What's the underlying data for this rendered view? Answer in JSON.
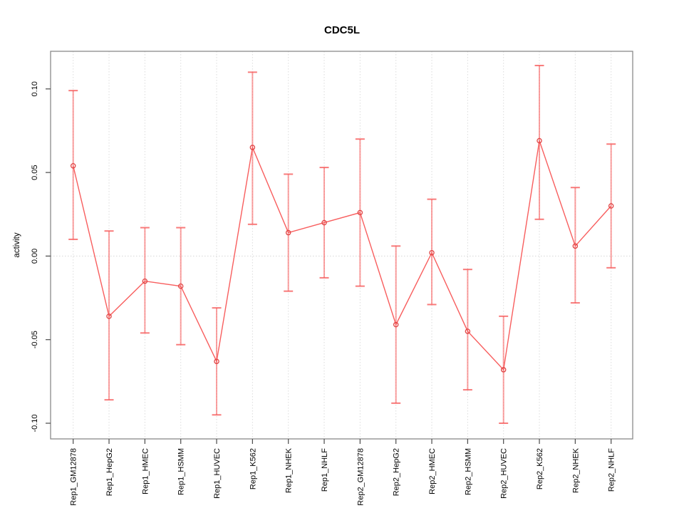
{
  "chart_data": {
    "type": "line",
    "title": "CDC5L",
    "ylabel": "activity",
    "xlabel": "",
    "categories": [
      "Rep1_GM12878",
      "Rep1_HepG2",
      "Rep1_HMEC",
      "Rep1_HSMM",
      "Rep1_HUVEC",
      "Rep1_K562",
      "Rep1_NHEK",
      "Rep1_NHLF",
      "Rep2_GM12878",
      "Rep2_HepG2",
      "Rep2_HMEC",
      "Rep2_HSMM",
      "Rep2_HUVEC",
      "Rep2_K562",
      "Rep2_NHEK",
      "Rep2_NHLF"
    ],
    "series": [
      {
        "name": "activity",
        "values": [
          0.054,
          -0.036,
          -0.015,
          -0.018,
          -0.063,
          0.065,
          0.014,
          0.02,
          0.026,
          -0.041,
          0.002,
          -0.045,
          -0.068,
          0.069,
          0.006,
          0.03
        ],
        "error_low": [
          0.01,
          -0.086,
          -0.046,
          -0.053,
          -0.095,
          0.019,
          -0.021,
          -0.013,
          -0.018,
          -0.088,
          -0.029,
          -0.08,
          -0.1,
          0.022,
          -0.028,
          -0.007
        ],
        "error_high": [
          0.099,
          0.015,
          0.017,
          0.017,
          -0.031,
          0.11,
          0.049,
          0.053,
          0.07,
          0.006,
          0.034,
          -0.008,
          -0.036,
          0.114,
          0.041,
          0.067
        ]
      }
    ],
    "y_ticks": [
      0.1,
      0.05,
      0.0,
      -0.05,
      -0.1
    ],
    "y_tick_labels": [
      "0.10",
      "0.05",
      "0.00",
      "-0.05",
      "-0.10"
    ],
    "ylim": [
      -0.109,
      0.123
    ],
    "grid": "vertical-dotted",
    "zero_line": true,
    "legend": "none",
    "point_style": "open-circle",
    "colors": {
      "point": "#e04444",
      "line": "#f85e5e",
      "error_bar": "rgba(247,82,82,0.55)",
      "error_cap": "rgba(246,90,90,0.8)",
      "grid": "#dcdcdc",
      "zero": "#d6d6d6",
      "box": "#8a8a8a",
      "tick": "#4a4a4a",
      "text": "#000000"
    }
  }
}
